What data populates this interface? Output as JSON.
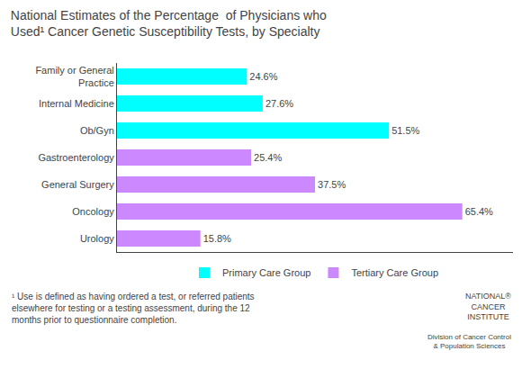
{
  "chart_data": {
    "type": "bar",
    "orientation": "horizontal",
    "title": "National Estimates of the Percentage  of Physicians who\nUsed¹ Cancer Genetic Susceptibility Tests, by Specialty",
    "categories": [
      "Family or General\nPractice",
      "Internal Medicine",
      "Ob/Gyn",
      "Gastroenterology",
      "General Surgery",
      "Oncology",
      "Urology"
    ],
    "series": [
      {
        "name": "Primary Care Group",
        "color": "#00FFFF",
        "values": [
          24.6,
          27.6,
          51.5,
          null,
          null,
          null,
          null
        ],
        "value_labels": [
          "24.6%",
          "27.6%",
          "51.5%",
          null,
          null,
          null,
          null
        ]
      },
      {
        "name": "Tertiary Care Group",
        "color": "#CC88FF",
        "values": [
          null,
          null,
          null,
          25.4,
          37.5,
          65.4,
          15.8
        ],
        "value_labels": [
          null,
          null,
          null,
          "25.4%",
          "37.5%",
          "65.4%",
          "15.8%"
        ]
      }
    ],
    "xlim": [
      0,
      75
    ],
    "tick_labels": "y",
    "data_labels": true,
    "grid": false,
    "legend": "bottom",
    "annotations": [
      "NATIONAL®\nCANCER\nINSTITUTE",
      "Division of Cancer Control\n& Population Sciences",
      "¹ Use is defined as having ordered a test, or referred patients\nelsewhere for testing or a testing assessment, during the 12\nmonths prior to questionnaire completion."
    ]
  }
}
